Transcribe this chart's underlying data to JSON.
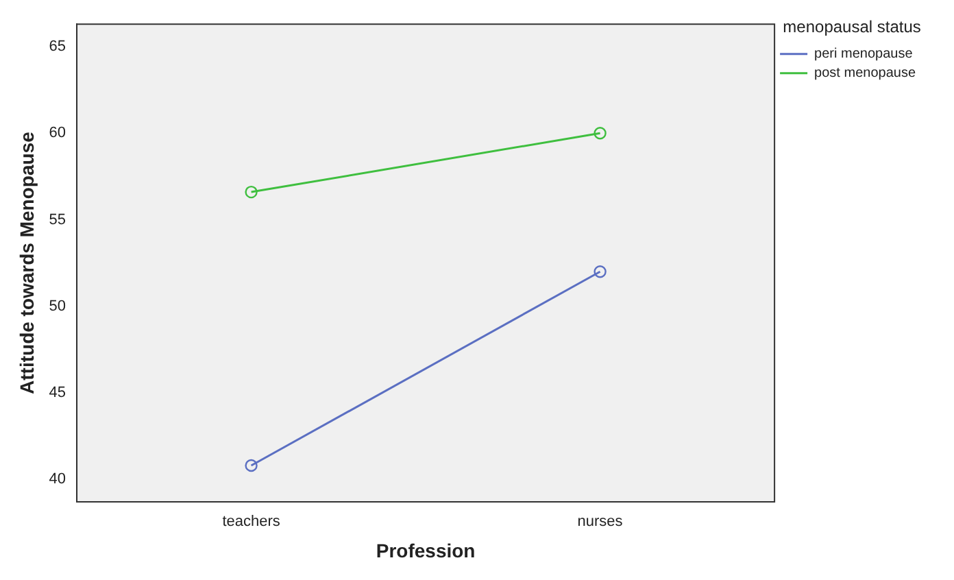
{
  "chart_data": {
    "type": "line",
    "xlabel": "Profession",
    "ylabel": "Attitude towards Menopause",
    "legend_title": "menopausal status",
    "categories": [
      "teachers",
      "nurses"
    ],
    "series": [
      {
        "name": "peri menopause",
        "color": "#5b6fc2",
        "values": [
          40.8,
          52.0
        ]
      },
      {
        "name": "post menopause",
        "color": "#3fbf3f",
        "values": [
          56.6,
          60.0
        ]
      }
    ],
    "ylim": [
      38.7,
      66.3
    ],
    "yticks": [
      40,
      45,
      50,
      55,
      60,
      65
    ],
    "grid": false,
    "legend": "top right",
    "marker": "circle",
    "line_style": "solid"
  }
}
